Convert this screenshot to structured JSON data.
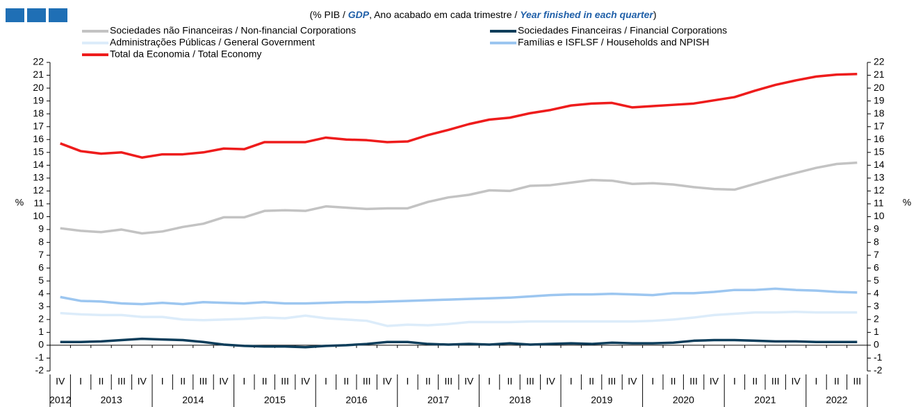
{
  "chart_data": {
    "type": "line",
    "title_parts": [
      {
        "text": "(% PIB / "
      },
      {
        "text": "GDP",
        "emphasis": true
      },
      {
        "text": ", Ano acabado em cada trimestre / "
      },
      {
        "text": "Year finished in each quarter",
        "emphasis": true
      },
      {
        "text": ")"
      }
    ],
    "ylabel": "%",
    "y2label": "%",
    "categories": [
      "IV",
      "I",
      "II",
      "III",
      "IV",
      "I",
      "II",
      "III",
      "IV",
      "I",
      "II",
      "III",
      "IV",
      "I",
      "II",
      "III",
      "IV",
      "I",
      "II",
      "III",
      "IV",
      "I",
      "II",
      "III",
      "IV",
      "I",
      "II",
      "III",
      "IV",
      "I",
      "II",
      "III",
      "IV",
      "I",
      "II",
      "III",
      "IV",
      "I",
      "II",
      "III"
    ],
    "years": [
      "2012",
      "2013",
      "2014",
      "2015",
      "2016",
      "2017",
      "2018",
      "2019",
      "2020",
      "2021",
      "2022"
    ],
    "ylim": [
      -2,
      22
    ],
    "yticks": [
      -2,
      -1,
      0,
      1,
      2,
      3,
      4,
      5,
      6,
      7,
      8,
      9,
      10,
      11,
      12,
      13,
      14,
      15,
      16,
      17,
      18,
      19,
      20,
      21,
      22
    ],
    "y2lim": [
      -2,
      22
    ],
    "y2ticks": [
      -2,
      -1,
      0,
      1,
      2,
      3,
      4,
      5,
      6,
      7,
      8,
      9,
      10,
      11,
      12,
      13,
      14,
      15,
      16,
      17,
      18,
      19,
      20,
      21,
      22
    ],
    "series": [
      {
        "name": "Sociedades não Financeiras / Non-financial Corporations",
        "color": "#c3c3c3",
        "values": [
          9.1,
          8.9,
          8.8,
          9.0,
          8.7,
          8.85,
          9.2,
          9.45,
          9.95,
          9.95,
          10.45,
          10.5,
          10.45,
          10.8,
          10.7,
          10.6,
          10.65,
          10.65,
          11.15,
          11.5,
          11.7,
          12.05,
          12.0,
          12.4,
          12.45,
          12.65,
          12.85,
          12.8,
          12.55,
          12.6,
          12.5,
          12.3,
          12.15,
          12.1,
          12.55,
          13.0,
          13.4,
          13.8,
          14.1,
          14.2
        ]
      },
      {
        "name": "Sociedades Financeiras / Financial Corporations",
        "color": "#0d3d5a",
        "values": [
          0.25,
          0.25,
          0.3,
          0.4,
          0.5,
          0.45,
          0.4,
          0.25,
          0.05,
          -0.05,
          -0.1,
          -0.1,
          -0.15,
          -0.05,
          0.0,
          0.1,
          0.25,
          0.25,
          0.1,
          0.05,
          0.1,
          0.05,
          0.15,
          0.05,
          0.1,
          0.15,
          0.1,
          0.2,
          0.15,
          0.15,
          0.2,
          0.35,
          0.4,
          0.4,
          0.35,
          0.3,
          0.3,
          0.25,
          0.25,
          0.25
        ]
      },
      {
        "name": "Administrações Públicas / General Government",
        "color": "#dcecfa",
        "values": [
          2.5,
          2.4,
          2.35,
          2.35,
          2.2,
          2.2,
          2.0,
          1.95,
          2.0,
          2.05,
          2.15,
          2.1,
          2.3,
          2.1,
          2.0,
          1.9,
          1.5,
          1.6,
          1.55,
          1.65,
          1.8,
          1.8,
          1.8,
          1.85,
          1.85,
          1.85,
          1.85,
          1.85,
          1.85,
          1.9,
          2.0,
          2.15,
          2.35,
          2.45,
          2.55,
          2.55,
          2.6,
          2.55,
          2.55,
          2.55
        ]
      },
      {
        "name": "Famílias e ISFLSF / Households and NPISH",
        "color": "#9cc6f0",
        "values": [
          3.75,
          3.45,
          3.4,
          3.25,
          3.2,
          3.3,
          3.2,
          3.35,
          3.3,
          3.25,
          3.35,
          3.25,
          3.25,
          3.3,
          3.35,
          3.35,
          3.4,
          3.45,
          3.5,
          3.55,
          3.6,
          3.65,
          3.7,
          3.8,
          3.9,
          3.95,
          3.95,
          4.0,
          3.95,
          3.9,
          4.05,
          4.05,
          4.15,
          4.3,
          4.3,
          4.4,
          4.3,
          4.25,
          4.15,
          4.1
        ]
      },
      {
        "name": "Total da Economia / Total Economy",
        "color": "#ee1c1c",
        "values": [
          15.7,
          15.1,
          14.9,
          15.0,
          14.6,
          14.85,
          14.85,
          15.0,
          15.3,
          15.25,
          15.8,
          15.8,
          15.8,
          16.15,
          16.0,
          15.95,
          15.8,
          15.85,
          16.35,
          16.75,
          17.2,
          17.55,
          17.7,
          18.05,
          18.3,
          18.65,
          18.8,
          18.85,
          18.5,
          18.6,
          18.7,
          18.8,
          19.05,
          19.3,
          19.8,
          20.25,
          20.6,
          20.9,
          21.05,
          21.1
        ]
      }
    ]
  }
}
